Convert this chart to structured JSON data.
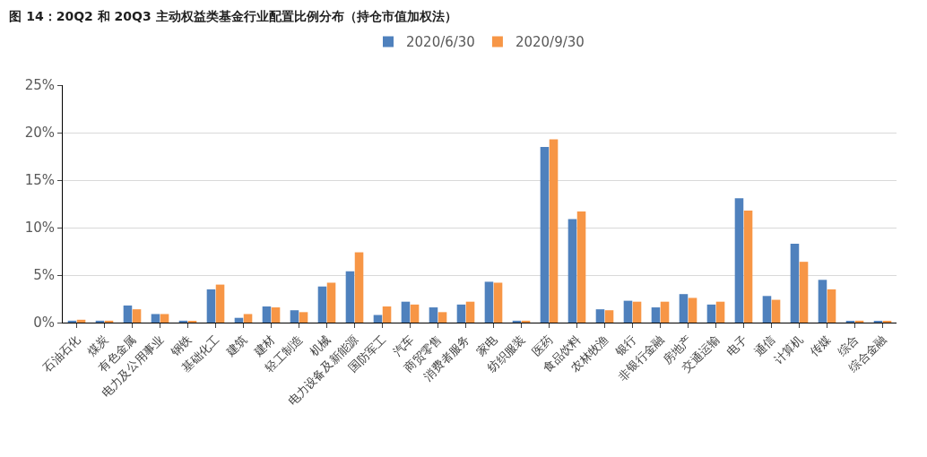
{
  "chart_data": {
    "type": "bar",
    "title": "图 14：20Q2 和 20Q3 主动权益类基金行业配置比例分布（持仓市值加权法）",
    "categories": [
      "石油石化",
      "煤炭",
      "有色金属",
      "电力及公用事业",
      "钢铁",
      "基础化工",
      "建筑",
      "建材",
      "轻工制造",
      "机械",
      "电力设备及新能源",
      "国防军工",
      "汽车",
      "商贸零售",
      "消费者服务",
      "家电",
      "纺织服装",
      "医药",
      "食品饮料",
      "农林牧渔",
      "银行",
      "非银行金融",
      "房地产",
      "交通运输",
      "电子",
      "通信",
      "计算机",
      "传媒",
      "综合",
      "综合金融"
    ],
    "series": [
      {
        "name": "2020/6/30",
        "color": "#4f81bd",
        "values": [
          0.2,
          0.2,
          1.8,
          0.9,
          0.2,
          3.5,
          0.5,
          1.7,
          1.3,
          3.8,
          5.4,
          0.8,
          2.2,
          1.6,
          1.9,
          4.3,
          0.2,
          18.5,
          10.9,
          1.4,
          2.3,
          1.6,
          3.0,
          1.9,
          13.1,
          2.8,
          8.3,
          4.5,
          0.1,
          0.1
        ]
      },
      {
        "name": "2020/9/30",
        "color": "#f79646",
        "values": [
          0.3,
          0.2,
          1.4,
          0.9,
          0.1,
          4.0,
          0.9,
          1.6,
          1.1,
          4.2,
          7.4,
          1.7,
          1.9,
          1.1,
          2.2,
          4.2,
          0.2,
          19.3,
          11.7,
          1.3,
          2.2,
          2.2,
          2.6,
          2.2,
          11.8,
          2.4,
          6.4,
          3.5,
          0.2,
          0.1
        ]
      }
    ],
    "ylim": [
      0,
      25
    ],
    "yticks": [
      {
        "value": 0,
        "label": "0%"
      },
      {
        "value": 5,
        "label": "5%"
      },
      {
        "value": 10,
        "label": "10%"
      },
      {
        "value": 15,
        "label": "15%"
      },
      {
        "value": 20,
        "label": "20%"
      },
      {
        "value": 25,
        "label": "25%"
      }
    ],
    "grid": "y",
    "legend": "top"
  }
}
